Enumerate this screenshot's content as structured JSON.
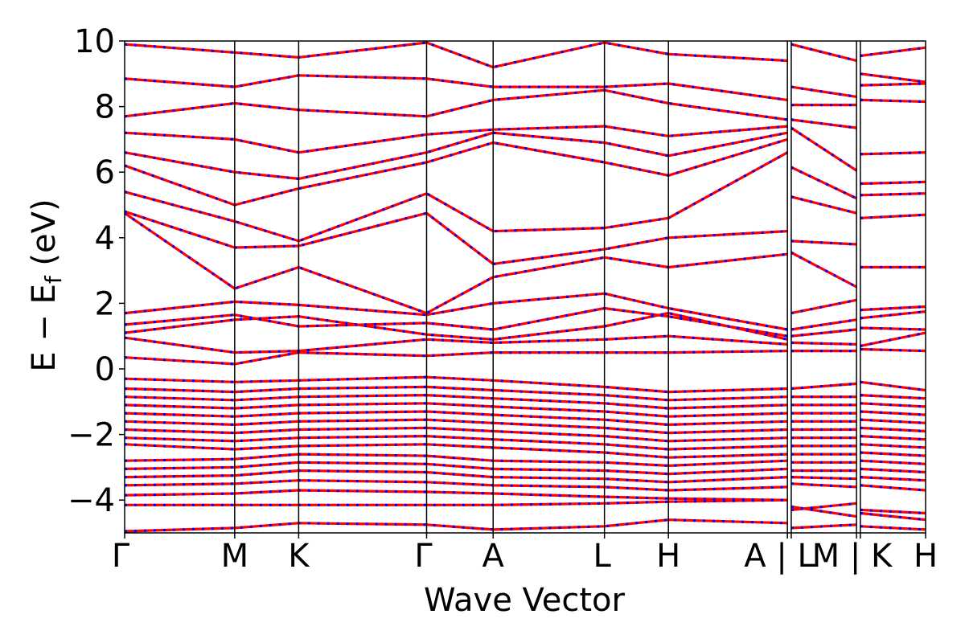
{
  "chart_data": {
    "type": "line",
    "title": "",
    "xlabel": "Wave Vector",
    "ylabel": "E − E",
    "ylabel_subscript": "f",
    "ylabel_unit": " (eV)",
    "ylim": [
      -5,
      10
    ],
    "yticks": [
      -4,
      -2,
      0,
      2,
      4,
      6,
      8,
      10
    ],
    "ytick_labels": [
      "−4",
      "−2",
      "0",
      "2",
      "4",
      "6",
      "8",
      "10"
    ],
    "xlim": [
      0,
      6.26
    ],
    "xticks": [
      0,
      0.86,
      1.36,
      2.36,
      2.88,
      3.75,
      4.25,
      5.18,
      5.21,
      5.72,
      5.75,
      6.26
    ],
    "xtick_labels": [
      "Γ",
      "M",
      "K",
      "Γ",
      "A",
      "L",
      "H",
      "A",
      "L",
      "M",
      "K",
      "H"
    ],
    "xtick_label_text": [
      "Γ",
      "M",
      "K",
      "Γ",
      "A",
      "L",
      "H",
      "A | L",
      "M | K",
      "H"
    ],
    "segment_breaks": [
      5.18,
      5.72
    ],
    "grid": false,
    "colors": {
      "band": "#ff0000",
      "band_dash": "#0000ff",
      "axis": "#000000",
      "background": "#ffffff"
    },
    "series": [
      {
        "kind": "band",
        "values": [
          -4.95,
          -4.85,
          -4.7,
          -4.75,
          -4.9,
          -4.8,
          -4.6,
          -4.7,
          -4.85,
          -4.75,
          -4.8,
          -4.9
        ]
      },
      {
        "kind": "band",
        "values": [
          -4.15,
          -4.15,
          -4.15,
          -4.15,
          -4.15,
          -4.1,
          -4.05,
          -4.0,
          -4.2,
          -4.5,
          -4.4,
          -4.6
        ]
      },
      {
        "kind": "band",
        "values": [
          -3.85,
          -3.8,
          -3.7,
          -3.75,
          -3.8,
          -3.9,
          -3.95,
          -4.0,
          -4.3,
          -4.1,
          -4.3,
          -4.4
        ]
      },
      {
        "kind": "band",
        "values": [
          -3.55,
          -3.5,
          -3.4,
          -3.45,
          -3.55,
          -3.6,
          -3.7,
          -3.6,
          -3.5,
          -3.6,
          -3.55,
          -3.7
        ]
      },
      {
        "kind": "band",
        "values": [
          -3.3,
          -3.25,
          -3.1,
          -3.15,
          -3.3,
          -3.35,
          -3.45,
          -3.3,
          -3.3,
          -3.35,
          -3.3,
          -3.4
        ]
      },
      {
        "kind": "band",
        "values": [
          -3.05,
          -3.0,
          -2.85,
          -2.9,
          -3.05,
          -3.1,
          -3.2,
          -3.05,
          -3.1,
          -3.1,
          -3.05,
          -3.15
        ]
      },
      {
        "kind": "band",
        "values": [
          -2.8,
          -2.75,
          -2.6,
          -2.65,
          -2.8,
          -2.85,
          -2.95,
          -2.8,
          -2.85,
          -2.85,
          -2.8,
          -2.9
        ]
      },
      {
        "kind": "band",
        "values": [
          -2.3,
          -2.45,
          -2.35,
          -2.3,
          -2.4,
          -2.55,
          -2.7,
          -2.6,
          -2.6,
          -2.6,
          -2.55,
          -2.65
        ]
      },
      {
        "kind": "band",
        "values": [
          -2.1,
          -2.2,
          -2.1,
          -2.05,
          -2.15,
          -2.3,
          -2.45,
          -2.35,
          -2.35,
          -2.35,
          -2.3,
          -2.4
        ]
      },
      {
        "kind": "band",
        "values": [
          -1.85,
          -1.95,
          -1.85,
          -1.8,
          -1.9,
          -2.05,
          -2.2,
          -2.1,
          -2.1,
          -2.1,
          -2.05,
          -2.15
        ]
      },
      {
        "kind": "band",
        "values": [
          -1.6,
          -1.7,
          -1.6,
          -1.55,
          -1.65,
          -1.8,
          -1.95,
          -1.85,
          -1.85,
          -1.85,
          -1.8,
          -1.9
        ]
      },
      {
        "kind": "band",
        "values": [
          -1.35,
          -1.45,
          -1.35,
          -1.3,
          -1.4,
          -1.55,
          -1.7,
          -1.6,
          -1.6,
          -1.6,
          -1.55,
          -1.65
        ]
      },
      {
        "kind": "band",
        "values": [
          -1.1,
          -1.2,
          -1.1,
          -1.05,
          -1.15,
          -1.3,
          -1.45,
          -1.35,
          -1.35,
          -1.35,
          -1.3,
          -1.4
        ]
      },
      {
        "kind": "band",
        "values": [
          -0.85,
          -0.95,
          -0.85,
          -0.8,
          -0.9,
          -1.05,
          -1.2,
          -1.1,
          -1.1,
          -1.1,
          -1.05,
          -1.15
        ]
      },
      {
        "kind": "band",
        "values": [
          -0.6,
          -0.7,
          -0.6,
          -0.55,
          -0.65,
          -0.8,
          -0.95,
          -0.85,
          -0.85,
          -0.85,
          -0.8,
          -0.9
        ]
      },
      {
        "kind": "band",
        "values": [
          -0.3,
          -0.4,
          -0.35,
          -0.25,
          -0.35,
          -0.55,
          -0.7,
          -0.6,
          -0.6,
          -0.45,
          -0.4,
          -0.65
        ]
      },
      {
        "kind": "band",
        "values": [
          0.35,
          0.15,
          0.5,
          0.4,
          0.5,
          0.5,
          0.5,
          0.55,
          0.55,
          0.55,
          0.6,
          0.55
        ]
      },
      {
        "kind": "band",
        "values": [
          0.95,
          0.5,
          0.55,
          0.9,
          0.8,
          0.9,
          1.0,
          0.75,
          0.8,
          0.75,
          0.7,
          1.1
        ]
      },
      {
        "kind": "band",
        "values": [
          1.1,
          1.5,
          1.6,
          1.05,
          0.9,
          1.3,
          1.7,
          0.9,
          1.0,
          1.2,
          1.25,
          1.2
        ]
      },
      {
        "kind": "band",
        "values": [
          1.35,
          1.65,
          1.3,
          1.4,
          1.2,
          1.85,
          1.6,
          1.0,
          1.2,
          1.5,
          1.55,
          1.75
        ]
      },
      {
        "kind": "band",
        "values": [
          1.7,
          2.05,
          1.95,
          1.65,
          2.0,
          2.3,
          1.85,
          1.2,
          1.7,
          2.1,
          1.8,
          1.9
        ]
      },
      {
        "kind": "band",
        "values": [
          4.75,
          2.45,
          3.1,
          1.7,
          2.8,
          3.4,
          3.1,
          3.5,
          3.55,
          2.5,
          3.1,
          3.1
        ]
      },
      {
        "kind": "band",
        "values": [
          4.8,
          3.7,
          3.75,
          4.75,
          3.2,
          3.65,
          4.0,
          4.2,
          3.9,
          3.8,
          4.6,
          4.7
        ]
      },
      {
        "kind": "band",
        "values": [
          5.4,
          4.5,
          3.9,
          5.35,
          4.2,
          4.3,
          4.6,
          6.6,
          5.25,
          4.75,
          5.3,
          5.35
        ]
      },
      {
        "kind": "band",
        "values": [
          6.2,
          5.0,
          5.5,
          6.3,
          6.9,
          6.3,
          5.9,
          7.0,
          6.15,
          5.2,
          5.65,
          5.7
        ]
      },
      {
        "kind": "band",
        "values": [
          6.6,
          6.0,
          5.8,
          6.6,
          7.2,
          6.9,
          6.5,
          7.2,
          7.35,
          6.05,
          6.55,
          6.6
        ]
      },
      {
        "kind": "band",
        "values": [
          7.2,
          7.0,
          6.6,
          7.15,
          7.3,
          7.4,
          7.1,
          7.4,
          7.6,
          7.35,
          8.2,
          8.15
        ]
      },
      {
        "kind": "band",
        "values": [
          7.7,
          8.1,
          7.9,
          7.7,
          8.2,
          8.5,
          8.1,
          7.6,
          8.05,
          8.05,
          8.65,
          8.7
        ]
      },
      {
        "kind": "band",
        "values": [
          8.85,
          8.6,
          8.95,
          8.85,
          8.6,
          8.6,
          8.7,
          8.2,
          8.6,
          8.3,
          9.0,
          8.75
        ]
      },
      {
        "kind": "band",
        "values": [
          9.9,
          9.65,
          9.5,
          9.95,
          9.2,
          9.95,
          9.6,
          9.4,
          9.9,
          9.4,
          9.55,
          9.8
        ]
      }
    ]
  }
}
